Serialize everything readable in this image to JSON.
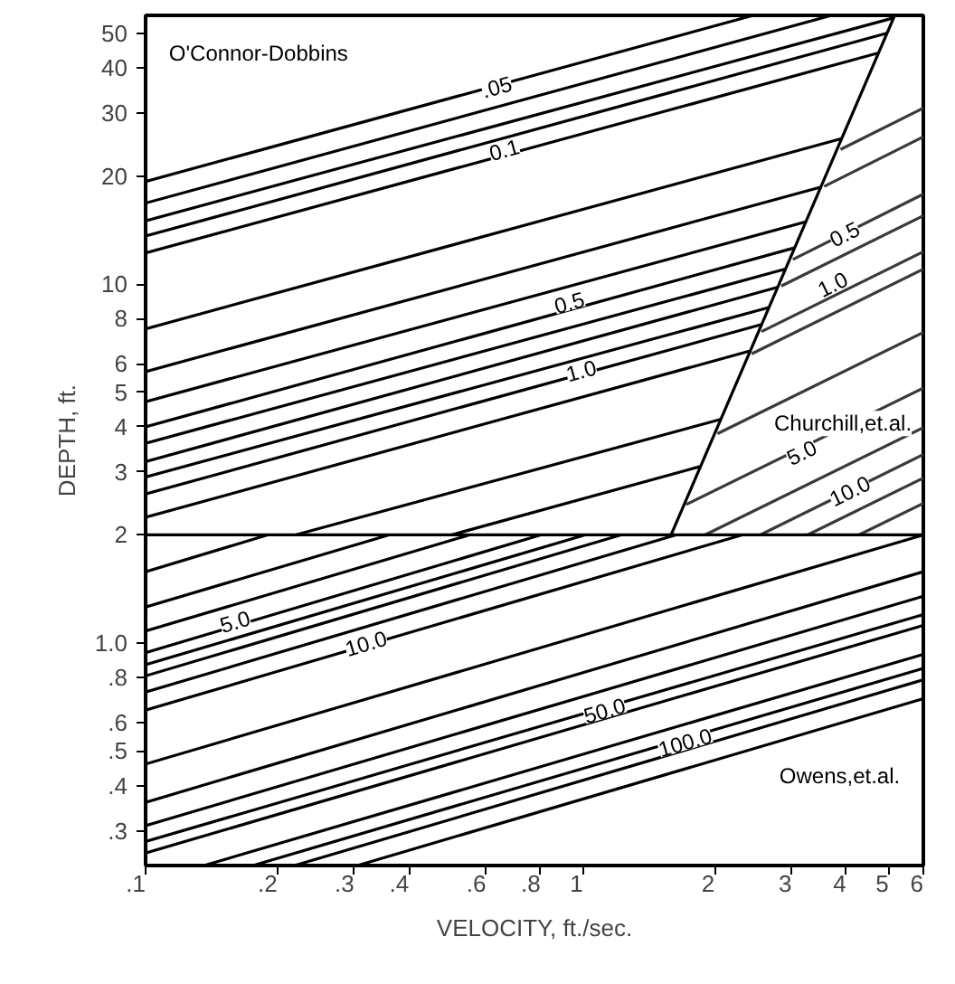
{
  "chart_data": {
    "type": "line",
    "xlabel": "VELOCITY, ft./sec.",
    "ylabel": "DEPTH, ft.",
    "log": "xy",
    "color": "#000000",
    "xlim": [
      0.1,
      6
    ],
    "ylim": [
      0.24,
      56
    ],
    "xticks": [
      {
        "value": 0.1,
        "label": ".1"
      },
      {
        "value": 0.2,
        "label": ".2"
      },
      {
        "value": 0.3,
        "label": ".3"
      },
      {
        "value": 0.4,
        "label": ".4"
      },
      {
        "value": 0.6,
        "label": ".6"
      },
      {
        "value": 0.8,
        "label": ".8"
      },
      1,
      2,
      3,
      4,
      5,
      6
    ],
    "yticks": [
      {
        "value": 0.3,
        "label": ".3"
      },
      {
        "value": 0.4,
        "label": ".4"
      },
      {
        "value": 0.5,
        "label": ".5"
      },
      {
        "value": 0.6,
        "label": ".6"
      },
      {
        "value": 0.8,
        "label": ".8"
      },
      {
        "value": 1,
        "label": "1.0"
      },
      2,
      3,
      4,
      5,
      6,
      8,
      10,
      20,
      30,
      40,
      50
    ],
    "ref_lines": [
      {
        "axis": "y",
        "value": 2
      }
    ],
    "series": [
      {
        "x": [
          0.1,
          2.45
        ],
        "values": [
          19.3,
          56
        ]
      },
      {
        "x": [
          0.1,
          3.7
        ],
        "values": [
          16.8,
          56
        ]
      },
      {
        "x": [
          0.1,
          5.1
        ],
        "values": [
          15.0,
          55
        ]
      },
      {
        "x": [
          0.1,
          4.97
        ],
        "values": [
          13.6,
          50
        ]
      },
      {
        "x": [
          0.1,
          4.74
        ],
        "values": [
          12.2,
          44
        ]
      },
      {
        "x": [
          0.1,
          3.9
        ],
        "values": [
          7.5,
          25.4
        ]
      },
      {
        "x": [
          0.1,
          3.49
        ],
        "values": [
          5.7,
          18.6
        ]
      },
      {
        "x": [
          0.1,
          3.23
        ],
        "values": [
          4.7,
          14.9
        ]
      },
      {
        "x": [
          0.1,
          3.04
        ],
        "values": [
          4.0,
          12.6
        ]
      },
      {
        "x": [
          0.1,
          2.9
        ],
        "values": [
          3.6,
          11.0
        ]
      },
      {
        "x": [
          0.1,
          2.79
        ],
        "values": [
          3.2,
          9.8
        ]
      },
      {
        "x": [
          0.1,
          2.66
        ],
        "values": [
          2.9,
          8.6
        ]
      },
      {
        "x": [
          0.1,
          2.55
        ],
        "values": [
          2.6,
          7.7
        ]
      },
      {
        "x": [
          0.1,
          2.4
        ],
        "values": [
          2.24,
          6.5
        ]
      },
      {
        "x": [
          0.22,
          2.07
        ],
        "values": [
          2,
          4.2
        ]
      },
      {
        "x": [
          0.5,
          1.85
        ],
        "values": [
          2,
          3.1
        ]
      },
      {
        "x": [
          1.59,
          5.16
        ],
        "values": [
          2,
          56
        ]
      },
      {
        "x": [
          3.88,
          6
        ],
        "values": [
          23.7,
          30.9
        ],
        "color": "#3a3a3a"
      },
      {
        "x": [
          3.56,
          6
        ],
        "values": [
          18.7,
          25.7
        ],
        "color": "#3a3a3a"
      },
      {
        "x": [
          3.02,
          6
        ],
        "values": [
          11.7,
          17.8
        ],
        "color": "#3a3a3a"
      },
      {
        "x": [
          2.84,
          6
        ],
        "values": [
          9.87,
          15.5
        ],
        "color": "#3a3a3a"
      },
      {
        "x": [
          2.56,
          6
        ],
        "values": [
          7.37,
          12.3
        ],
        "color": "#3a3a3a"
      },
      {
        "x": [
          2.43,
          6
        ],
        "values": [
          6.39,
          11.0
        ],
        "color": "#3a3a3a"
      },
      {
        "x": [
          2.03,
          6
        ],
        "values": [
          3.83,
          7.33
        ],
        "color": "#3a3a3a"
      },
      {
        "x": [
          1.72,
          6
        ],
        "values": [
          2.43,
          5.13
        ],
        "color": "#3a3a3a"
      },
      {
        "x": [
          1.9,
          6
        ],
        "values": [
          2,
          3.98
        ],
        "color": "#3a3a3a"
      },
      {
        "x": [
          2.54,
          6
        ],
        "values": [
          2,
          3.35
        ],
        "color": "#3a3a3a"
      },
      {
        "x": [
          3.26,
          6
        ],
        "values": [
          2,
          2.88
        ],
        "color": "#3a3a3a"
      },
      {
        "x": [
          4.27,
          6
        ],
        "values": [
          2,
          2.45
        ],
        "color": "#3a3a3a"
      },
      {
        "x": [
          0.1,
          0.19
        ],
        "values": [
          1.58,
          2
        ]
      },
      {
        "x": [
          0.1,
          0.36
        ],
        "values": [
          1.26,
          2
        ]
      },
      {
        "x": [
          0.1,
          0.55
        ],
        "values": [
          1.08,
          2
        ]
      },
      {
        "x": [
          0.1,
          0.8
        ],
        "values": [
          0.94,
          2
        ]
      },
      {
        "x": [
          0.1,
          1.01
        ],
        "values": [
          0.87,
          2
        ]
      },
      {
        "x": [
          0.1,
          1.22
        ],
        "values": [
          0.81,
          2
        ]
      },
      {
        "x": [
          0.1,
          1.63
        ],
        "values": [
          0.73,
          2
        ]
      },
      {
        "x": [
          0.1,
          2.31
        ],
        "values": [
          0.65,
          2
        ]
      },
      {
        "x": [
          0.1,
          6
        ],
        "values": [
          0.46,
          2.0
        ]
      },
      {
        "x": [
          0.1,
          6
        ],
        "values": [
          0.36,
          1.58
        ]
      },
      {
        "x": [
          0.1,
          6
        ],
        "values": [
          0.31,
          1.35
        ]
      },
      {
        "x": [
          0.1,
          6
        ],
        "values": [
          0.28,
          1.2
        ]
      },
      {
        "x": [
          0.1,
          6
        ],
        "values": [
          0.26,
          1.12
        ]
      },
      {
        "x": [
          0.136,
          6
        ],
        "values": [
          0.24,
          0.93
        ]
      },
      {
        "x": [
          0.176,
          6
        ],
        "values": [
          0.24,
          0.85
        ]
      },
      {
        "x": [
          0.219,
          6
        ],
        "values": [
          0.24,
          0.79
        ]
      },
      {
        "x": [
          0.305,
          6
        ],
        "values": [
          0.24,
          0.7
        ]
      }
    ],
    "annotations": [
      "O'Connor-Dobbins",
      {
        "text": ".05",
        "x": 0.635,
        "y": 35.5
      },
      {
        "text": "0.1",
        "x": 0.66,
        "y": 23.7
      },
      {
        "text": "0.5",
        "x": 0.93,
        "y": 8.9
      },
      {
        "text": "1.0",
        "x": 0.99,
        "y": 5.75
      },
      {
        "text": "0.5",
        "x": 3.96,
        "y": 13.8
      },
      {
        "text": "1.0",
        "x": 3.72,
        "y": 10
      },
      "Churchill,et.al.",
      {
        "text": "5.0",
        "x": 3.16,
        "y": 3.4
      },
      {
        "text": "10.0",
        "x": 4.07,
        "y": 2.66
      },
      {
        "text": "5.0",
        "x": 0.16,
        "y": 1.15
      },
      {
        "text": "10.0",
        "x": 0.319,
        "y": 1.0
      },
      {
        "text": "50.0",
        "x": 1.12,
        "y": 0.65
      },
      {
        "text": "100.0",
        "x": 1.71,
        "y": 0.53
      },
      "Owens,et.al."
    ]
  }
}
